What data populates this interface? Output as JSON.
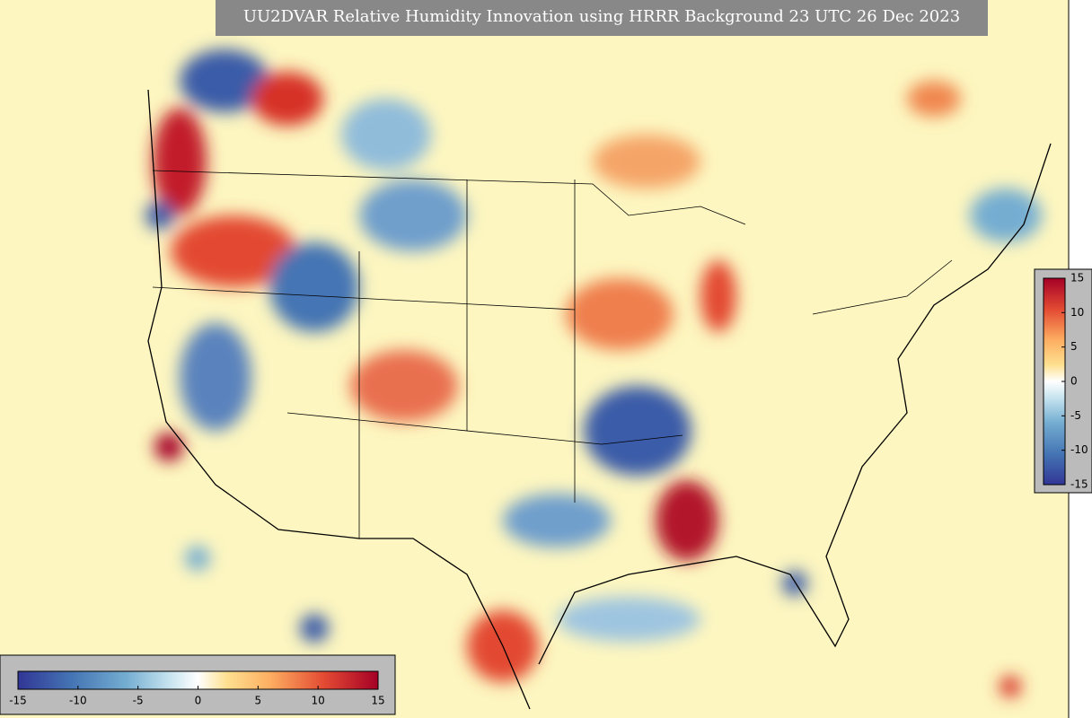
{
  "title": "UU2DVAR Relative Humidity Innovation using HRRR Background 23 UTC 26 Dec 2023",
  "colorbar": {
    "range": [
      -15,
      15
    ],
    "ticks": [
      -15,
      -10,
      -5,
      0,
      5,
      10,
      15
    ]
  }
}
